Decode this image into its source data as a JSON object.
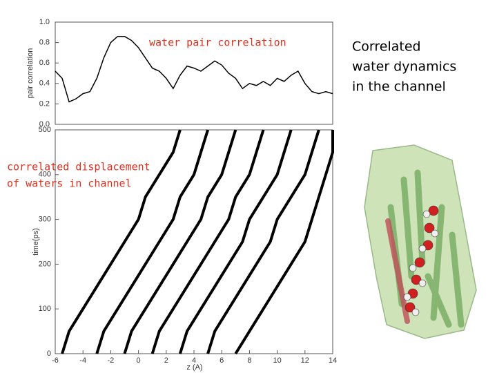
{
  "title_lines": [
    "Correlated",
    "water dynamics",
    "in the channel"
  ],
  "chart_data": [
    {
      "type": "line",
      "annotation": "water pair correlation",
      "ylabel": "pair correlation",
      "x": [
        -6,
        -5.5,
        -5,
        -4.5,
        -4,
        -3.5,
        -3,
        -2.5,
        -2,
        -1.5,
        -1,
        -0.5,
        0,
        0.5,
        1,
        1.5,
        2,
        2.5,
        3,
        3.5,
        4,
        4.5,
        5,
        5.5,
        6,
        6.5,
        7,
        7.5,
        8,
        8.5,
        9,
        9.5,
        10,
        10.5,
        11,
        11.5,
        12,
        12.5,
        13,
        13.5,
        14
      ],
      "values": [
        0.52,
        0.45,
        0.22,
        0.25,
        0.3,
        0.32,
        0.45,
        0.65,
        0.8,
        0.86,
        0.86,
        0.82,
        0.75,
        0.65,
        0.55,
        0.52,
        0.45,
        0.35,
        0.48,
        0.57,
        0.55,
        0.52,
        0.57,
        0.62,
        0.58,
        0.5,
        0.45,
        0.35,
        0.4,
        0.38,
        0.42,
        0.38,
        0.45,
        0.42,
        0.48,
        0.52,
        0.4,
        0.32,
        0.3,
        0.32,
        0.3
      ],
      "color": "#000000",
      "xlim": [
        -6,
        14
      ],
      "ylim": [
        0,
        1
      ],
      "yticks": [
        {
          "value": 0,
          "label": "0.0"
        },
        0.2,
        0.4,
        0.6,
        0.8,
        {
          "value": 1,
          "label": "1.0"
        }
      ]
    },
    {
      "type": "trajectory",
      "annotation": [
        "correlated displacement",
        "of waters in channel"
      ],
      "xlabel": "z (A)",
      "ylabel": "time(ps)",
      "color": "#000000",
      "y": [
        0,
        50,
        100,
        150,
        200,
        250,
        300,
        350,
        400,
        450,
        500
      ],
      "series": [
        {
          "values": [
            -5.5,
            -5,
            -4,
            -3,
            -2,
            -1,
            0,
            0.5,
            1.5,
            2.5,
            3
          ]
        },
        {
          "values": [
            -3,
            -2.5,
            -1.5,
            -0.5,
            0.5,
            1.5,
            2.5,
            3,
            4,
            4.5,
            5
          ]
        },
        {
          "values": [
            -1,
            -0.5,
            0.5,
            1.5,
            2.5,
            3.5,
            4.5,
            5,
            6,
            6.5,
            7
          ]
        },
        {
          "values": [
            1,
            1.5,
            2.5,
            3.5,
            4.5,
            5.5,
            6.5,
            7,
            8,
            8.5,
            9
          ]
        },
        {
          "values": [
            3,
            3.5,
            4.5,
            5.5,
            6.5,
            7.5,
            8,
            9,
            10,
            10.5,
            11
          ]
        },
        {
          "values": [
            5,
            5.5,
            6.5,
            7.5,
            8.5,
            9.5,
            10,
            11,
            12,
            12.5,
            13
          ]
        },
        {
          "values": [
            7,
            8,
            9,
            10,
            11,
            12,
            12.5,
            13,
            13.5,
            14,
            14
          ]
        }
      ],
      "xlim": [
        -6,
        14
      ],
      "ylim": [
        0,
        500
      ],
      "xticks": [
        -6,
        -4,
        -2,
        0,
        2,
        4,
        6,
        8,
        10,
        12,
        14
      ],
      "yticks": [
        0,
        100,
        200,
        300,
        400,
        500
      ]
    }
  ]
}
